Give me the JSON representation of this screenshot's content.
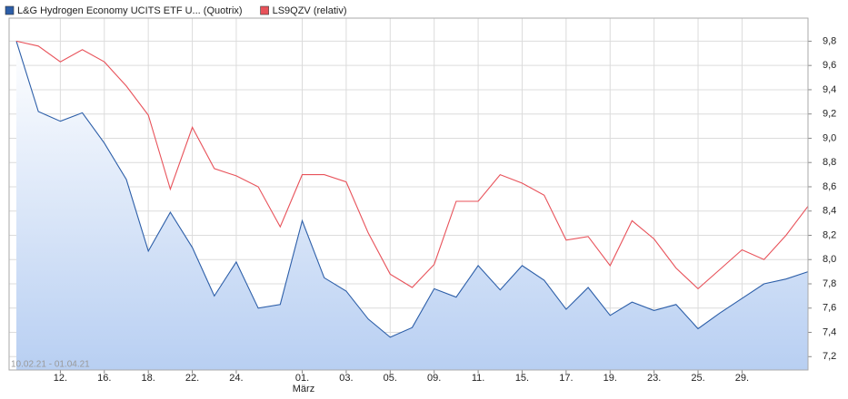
{
  "chart_data": {
    "type": "line",
    "categories": [
      null,
      null,
      "12.",
      null,
      "16.",
      null,
      "18.",
      null,
      "22.",
      null,
      "24.",
      null,
      null,
      "01.",
      null,
      "03.",
      null,
      "05.",
      null,
      "09.",
      null,
      "11.",
      null,
      "15.",
      null,
      "17.",
      null,
      "19.",
      null,
      "23.",
      null,
      "25.",
      null,
      "29.",
      null,
      null,
      null
    ],
    "month_label": "März",
    "date_range": "10.02.21 - 01.04.21",
    "series": [
      {
        "name": "L&G Hydrogen Economy UCITS ETF U... (Quotrix)",
        "color": "#2c5ea8",
        "area": true,
        "values": [
          9.8,
          9.22,
          9.14,
          9.21,
          8.96,
          8.66,
          8.07,
          8.39,
          8.1,
          7.7,
          7.98,
          7.6,
          7.63,
          8.32,
          7.85,
          7.74,
          7.51,
          7.36,
          7.44,
          7.76,
          7.69,
          7.95,
          7.75,
          7.95,
          7.83,
          7.59,
          7.77,
          7.54,
          7.65,
          7.58,
          7.63,
          7.43,
          7.56,
          7.68,
          7.8,
          7.84,
          7.9
        ]
      },
      {
        "name": "LS9QZV (relativ)",
        "color": "#e8525a",
        "area": false,
        "values": [
          9.8,
          9.76,
          9.63,
          9.73,
          9.63,
          9.43,
          9.19,
          8.58,
          9.09,
          8.75,
          8.69,
          8.6,
          8.27,
          8.7,
          8.7,
          8.64,
          8.22,
          7.88,
          7.77,
          7.96,
          8.48,
          8.48,
          8.7,
          8.63,
          8.53,
          8.16,
          8.19,
          7.95,
          8.32,
          8.17,
          7.93,
          7.76,
          7.92,
          8.08,
          8.0,
          8.2,
          8.44
        ]
      }
    ],
    "ylim": [
      7.09,
      9.99
    ],
    "yticks": [
      {
        "value": 7.2,
        "label": "7,2"
      },
      {
        "value": 7.4,
        "label": "7,4"
      },
      {
        "value": 7.6,
        "label": "7,6"
      },
      {
        "value": 7.8,
        "label": "7,8"
      },
      {
        "value": 8.0,
        "label": "8,0"
      },
      {
        "value": 8.2,
        "label": "8,2"
      },
      {
        "value": 8.4,
        "label": "8,4"
      },
      {
        "value": 8.6,
        "label": "8,6"
      },
      {
        "value": 8.8,
        "label": "8,8"
      },
      {
        "value": 9.0,
        "label": "9,0"
      },
      {
        "value": 9.2,
        "label": "9,2"
      },
      {
        "value": 9.4,
        "label": "9,4"
      },
      {
        "value": 9.6,
        "label": "9,6"
      },
      {
        "value": 9.8,
        "label": "9,8"
      }
    ],
    "grid": true,
    "y_axis_side": "right"
  }
}
